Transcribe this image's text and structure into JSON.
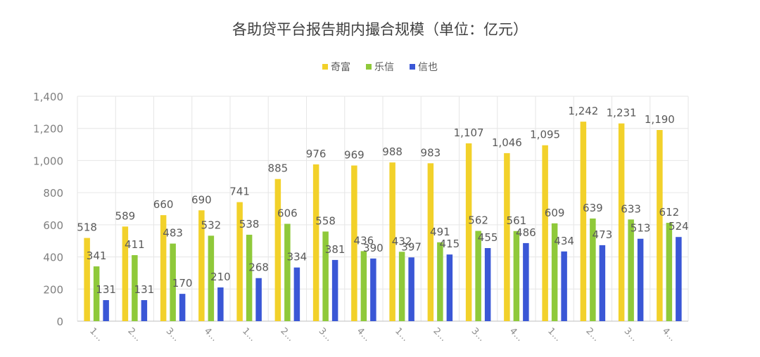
{
  "colors": {
    "qifu": "#f2d12a",
    "lexin": "#8fc93a",
    "xinye": "#3a57d6"
  },
  "chart_data": {
    "type": "bar",
    "title": "各助贷平台报告期内撮合规模（单位：亿元）",
    "xlabel": "",
    "ylabel": "",
    "ylim": [
      0,
      1400
    ],
    "yticks": [
      "0",
      "200",
      "400",
      "600",
      "800",
      "1,000",
      "1,200",
      "1,400"
    ],
    "categories": [
      "1...",
      "2...",
      "3...",
      "4...",
      "1...",
      "2...",
      "3...",
      "4...",
      "1...",
      "2...",
      "3...",
      "4...",
      "1...",
      "2...",
      "3...",
      "4..."
    ],
    "legend_position": "top-center",
    "grid": true,
    "series": [
      {
        "name": "奇富",
        "values": [
          518,
          589,
          660,
          690,
          741,
          885,
          976,
          969,
          988,
          983,
          1107,
          1046,
          1095,
          1242,
          1231,
          1190
        ]
      },
      {
        "name": "乐信",
        "values": [
          341,
          411,
          483,
          532,
          538,
          606,
          558,
          436,
          432,
          491,
          562,
          561,
          609,
          639,
          633,
          612
        ]
      },
      {
        "name": "信也",
        "values": [
          131,
          131,
          170,
          210,
          268,
          334,
          381,
          390,
          397,
          415,
          455,
          486,
          434,
          473,
          513,
          524
        ]
      }
    ]
  }
}
